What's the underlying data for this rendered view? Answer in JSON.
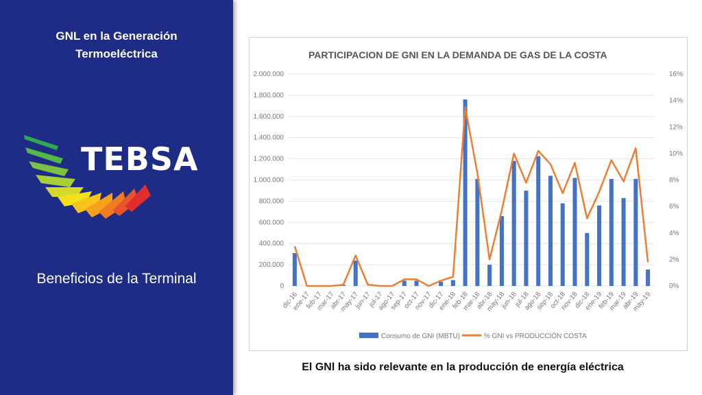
{
  "sidebar": {
    "title_line1": "GNL en la Generación",
    "title_line2": "Termoeléctrica",
    "logo_text": "TEBSA",
    "subtitle": "Beneficios de la Terminal"
  },
  "caption": "El GNl ha sido relevante en la producción de energía eléctrica",
  "colors": {
    "sidebar_bg": "#1f2c85",
    "bar": "#4472c4",
    "line": "#ed7d31"
  },
  "chart_data": {
    "type": "bar",
    "title": "PARTICIPACION DE GNI EN LA DEMANDA DE GAS DE LA COSTA",
    "categories": [
      "dic-16",
      "ene-17",
      "feb-17",
      "mar-17",
      "abr-17",
      "may-17",
      "jun-17",
      "jul-17",
      "ago-17",
      "sep-17",
      "oct-17",
      "nov-17",
      "dic-17",
      "ene-18",
      "feb-18",
      "mar-18",
      "abr-18",
      "may-18",
      "jun-18",
      "jul-18",
      "ago-18",
      "sep-18",
      "oct-18",
      "nov-18",
      "dic-18",
      "ene-19",
      "feb-19",
      "mar-19",
      "abr-19",
      "may-19"
    ],
    "series": [
      {
        "name": "Consumo de GNI (MBTU)",
        "type": "bar",
        "axis": "left",
        "values": [
          310000,
          0,
          0,
          0,
          10000,
          240000,
          0,
          0,
          0,
          50000,
          50000,
          0,
          40000,
          55000,
          1760000,
          1010000,
          200000,
          660000,
          1180000,
          900000,
          1225000,
          1040000,
          780000,
          1020000,
          500000,
          760000,
          1010000,
          830000,
          1010000,
          155000
        ]
      },
      {
        "name": "% GNI vs PRODUCCIÓN COSTA",
        "type": "line",
        "axis": "right",
        "values": [
          3.0,
          0.0,
          0.0,
          0.0,
          0.1,
          2.3,
          0.1,
          0.0,
          0.0,
          0.5,
          0.5,
          0.0,
          0.4,
          0.7,
          13.5,
          8.5,
          2.0,
          5.7,
          10.0,
          7.8,
          10.2,
          9.2,
          7.0,
          9.3,
          5.1,
          7.1,
          9.5,
          7.9,
          10.4,
          1.8
        ]
      }
    ],
    "left_ticks": [
      "2.000.000",
      "1.800.000",
      "1.600.000",
      "1.400.000",
      "1.200.000",
      "1.000.000",
      "800.000",
      "600.000",
      "400.000",
      "200.000",
      "0"
    ],
    "right_ticks": [
      "16%",
      "14%",
      "12%",
      "10%",
      "8%",
      "6%",
      "4%",
      "2%",
      "0%"
    ],
    "ylim_left": [
      0,
      2000000
    ],
    "ylim_right": [
      0,
      16
    ],
    "legend_position": "bottom",
    "grid": true
  }
}
